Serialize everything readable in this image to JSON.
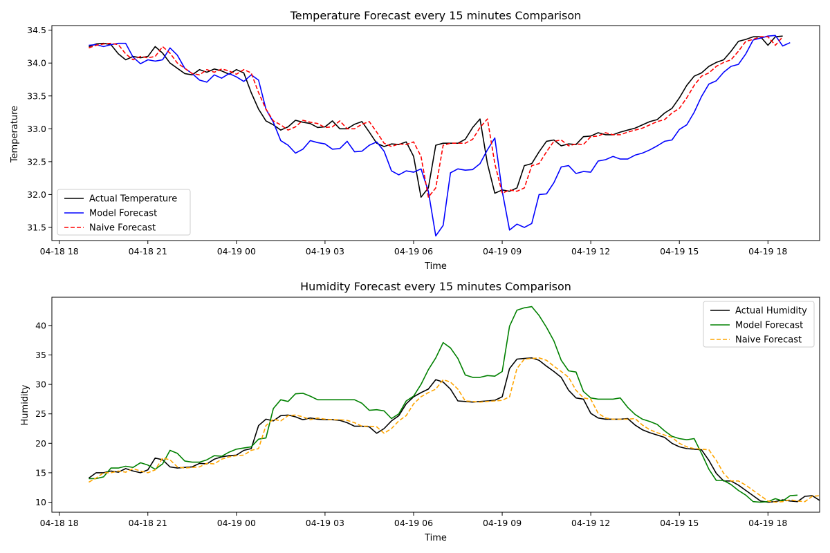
{
  "x_ticks": [
    "04-18 18",
    "04-18 21",
    "04-19 00",
    "04-19 03",
    "04-19 06",
    "04-19 09",
    "04-19 12",
    "04-19 15",
    "04-19 18"
  ],
  "colors": {
    "actual": "#000000",
    "temp_model": "#0000ff",
    "temp_naive": "#ff0000",
    "hum_model": "#008000",
    "hum_naive": "#ffa500"
  },
  "chart_data": [
    {
      "type": "line",
      "title": "Temperature Forecast every 15 minutes Comparison",
      "xlabel": "Time",
      "ylabel": "Temperature",
      "x_start": "2024-04-18 19:00",
      "x_step_minutes": 15,
      "xlim": [
        "2024-04-18 17:45",
        "2024-04-19 19:45"
      ],
      "ylim": [
        31.3,
        34.57
      ],
      "yticks": [
        "31.5",
        "32.0",
        "32.5",
        "33.0",
        "33.5",
        "34.0",
        "34.5"
      ],
      "legend_position": "bottom-left",
      "grid": false,
      "series": [
        {
          "name": "Actual Temperature",
          "style": "solid",
          "values": [
            34.25,
            34.29,
            34.3,
            34.28,
            34.14,
            34.05,
            34.1,
            34.08,
            34.1,
            34.25,
            34.15,
            34.0,
            33.92,
            33.84,
            33.82,
            33.9,
            33.86,
            33.91,
            33.88,
            33.83,
            33.9,
            33.85,
            33.55,
            33.3,
            33.12,
            33.06,
            32.98,
            33.03,
            33.13,
            33.1,
            33.08,
            33.02,
            33.03,
            33.12,
            33.0,
            33.0,
            33.07,
            33.11,
            32.95,
            32.78,
            32.73,
            32.77,
            32.76,
            32.8,
            32.58,
            31.96,
            32.1,
            32.75,
            32.78,
            32.78,
            32.78,
            32.84,
            33.02,
            33.15,
            32.47,
            32.02,
            32.07,
            32.05,
            32.1,
            32.44,
            32.47,
            32.65,
            32.81,
            32.83,
            32.74,
            32.77,
            32.76,
            32.88,
            32.89,
            32.94,
            32.91,
            32.91,
            32.95,
            32.98,
            33.01,
            33.06,
            33.11,
            33.14,
            33.24,
            33.31,
            33.47,
            33.66,
            33.8,
            33.85,
            33.95,
            34.01,
            34.05,
            34.18,
            34.33,
            34.36,
            34.4,
            34.4,
            34.27,
            34.4,
            34.41
          ]
        },
        {
          "name": "Model Forecast",
          "style": "solid",
          "values": [
            34.27,
            34.28,
            34.25,
            34.28,
            34.3,
            34.3,
            34.09,
            33.99,
            34.05,
            34.03,
            34.05,
            34.23,
            34.12,
            33.92,
            33.84,
            33.74,
            33.71,
            33.82,
            33.77,
            33.84,
            33.79,
            33.72,
            33.82,
            33.74,
            33.3,
            33.1,
            32.82,
            32.75,
            32.63,
            32.69,
            32.82,
            32.79,
            32.77,
            32.69,
            32.7,
            32.81,
            32.65,
            32.66,
            32.75,
            32.8,
            32.66,
            32.36,
            32.3,
            32.36,
            32.34,
            32.39,
            32.05,
            31.37,
            31.53,
            32.33,
            32.39,
            32.37,
            32.38,
            32.47,
            32.68,
            32.86,
            32.05,
            31.46,
            31.55,
            31.5,
            31.56,
            32.0,
            32.01,
            32.18,
            32.42,
            32.44,
            32.32,
            32.35,
            32.34,
            32.51,
            32.53,
            32.58,
            32.54,
            32.54,
            32.6,
            32.63,
            32.68,
            32.74,
            32.81,
            32.83,
            32.99,
            33.06,
            33.25,
            33.49,
            33.68,
            33.73,
            33.86,
            33.95,
            33.98,
            34.14,
            34.35,
            34.38,
            34.41,
            34.42,
            34.26,
            34.31
          ]
        },
        {
          "name": "Naive Forecast",
          "style": "dashed",
          "values": [
            34.23,
            34.27,
            34.29,
            34.3,
            34.28,
            34.14,
            34.05,
            34.1,
            34.08,
            34.1,
            34.25,
            34.15,
            34.0,
            33.92,
            33.84,
            33.82,
            33.9,
            33.86,
            33.91,
            33.88,
            33.83,
            33.9,
            33.85,
            33.55,
            33.3,
            33.12,
            33.06,
            32.98,
            33.03,
            33.13,
            33.1,
            33.08,
            33.02,
            33.03,
            33.12,
            33.0,
            33.0,
            33.07,
            33.11,
            32.95,
            32.78,
            32.73,
            32.77,
            32.76,
            32.8,
            32.58,
            31.96,
            32.1,
            32.75,
            32.78,
            32.78,
            32.78,
            32.84,
            33.02,
            33.15,
            32.47,
            32.02,
            32.07,
            32.05,
            32.1,
            32.44,
            32.47,
            32.65,
            32.81,
            32.83,
            32.74,
            32.77,
            32.76,
            32.88,
            32.89,
            32.94,
            32.91,
            32.91,
            32.95,
            32.98,
            33.01,
            33.06,
            33.11,
            33.14,
            33.24,
            33.31,
            33.47,
            33.66,
            33.8,
            33.85,
            33.95,
            34.01,
            34.05,
            34.18,
            34.33,
            34.36,
            34.4,
            34.4,
            34.27,
            34.4
          ]
        }
      ]
    },
    {
      "type": "line",
      "title": "Humidity Forecast every 15 minutes Comparison",
      "xlabel": "Time",
      "ylabel": "Humidity",
      "x_start": "2024-04-18 19:00",
      "x_step_minutes": 15,
      "xlim": [
        "2024-04-18 17:45",
        "2024-04-19 19:45"
      ],
      "ylim": [
        8.3,
        44.8
      ],
      "yticks": [
        "10",
        "15",
        "20",
        "25",
        "30",
        "35",
        "40"
      ],
      "legend_position": "top-right",
      "grid": false,
      "series": [
        {
          "name": "Actual Humidity",
          "style": "solid",
          "values": [
            14.1,
            15.0,
            15.0,
            15.3,
            15.1,
            15.7,
            15.3,
            15.0,
            15.5,
            17.5,
            17.2,
            16.0,
            15.8,
            15.9,
            16.0,
            16.6,
            16.5,
            17.3,
            17.7,
            17.9,
            18.0,
            18.8,
            19.1,
            23.0,
            24.1,
            23.8,
            24.7,
            24.8,
            24.5,
            24.0,
            24.3,
            24.1,
            24.0,
            24.0,
            23.9,
            23.5,
            22.9,
            22.9,
            22.8,
            21.7,
            22.5,
            23.8,
            24.7,
            26.7,
            27.9,
            28.6,
            29.2,
            30.8,
            30.4,
            29.2,
            27.2,
            27.1,
            27.0,
            27.1,
            27.2,
            27.3,
            27.9,
            32.7,
            34.3,
            34.4,
            34.5,
            34.1,
            33.1,
            32.2,
            31.2,
            29.0,
            27.7,
            27.5,
            25.1,
            24.3,
            24.1,
            24.1,
            24.1,
            24.2,
            23.1,
            22.3,
            21.8,
            21.4,
            21.0,
            20.0,
            19.4,
            19.1,
            19.0,
            18.9,
            17.1,
            14.9,
            13.6,
            13.6,
            12.9,
            12.0,
            11.1,
            10.2,
            10.0,
            10.1,
            10.4,
            10.2,
            10.1,
            11.0,
            11.1,
            10.3,
            10.4
          ]
        },
        {
          "name": "Model Forecast",
          "style": "solid",
          "values": [
            14.0,
            14.0,
            14.3,
            15.8,
            15.8,
            16.1,
            15.9,
            16.7,
            16.3,
            15.6,
            16.5,
            18.8,
            18.3,
            17.0,
            16.8,
            16.8,
            17.2,
            17.9,
            17.8,
            18.5,
            19.0,
            19.2,
            19.4,
            20.7,
            20.9,
            25.9,
            27.4,
            27.1,
            28.4,
            28.5,
            28.0,
            27.4,
            27.4,
            27.4,
            27.4,
            27.4,
            27.4,
            26.8,
            25.6,
            25.7,
            25.5,
            24.2,
            25.0,
            27.2,
            28.0,
            30.0,
            32.5,
            34.5,
            37.1,
            36.2,
            34.4,
            31.6,
            31.2,
            31.2,
            31.5,
            31.4,
            32.2,
            39.9,
            42.6,
            43.0,
            43.2,
            41.7,
            39.7,
            37.4,
            34.1,
            32.3,
            32.1,
            28.8,
            27.7,
            27.5,
            27.5,
            27.5,
            27.7,
            26.1,
            24.9,
            24.1,
            23.7,
            23.2,
            22.1,
            21.2,
            20.8,
            20.6,
            20.8,
            18.3,
            15.6,
            13.7,
            13.7,
            13.0,
            12.0,
            11.2,
            10.1,
            10.0,
            10.1,
            10.6,
            10.2,
            11.1,
            11.2
          ]
        },
        {
          "name": "Naive Forecast",
          "style": "dashed",
          "values": [
            13.4,
            14.1,
            15.0,
            15.0,
            15.3,
            15.1,
            15.7,
            15.3,
            15.0,
            15.5,
            17.5,
            17.2,
            16.0,
            15.8,
            15.9,
            16.0,
            16.6,
            16.5,
            17.3,
            17.7,
            17.9,
            18.0,
            18.8,
            19.1,
            23.0,
            24.1,
            23.8,
            24.7,
            24.8,
            24.5,
            24.0,
            24.3,
            24.1,
            24.0,
            24.0,
            23.9,
            23.5,
            22.9,
            22.9,
            22.8,
            21.7,
            22.5,
            23.8,
            24.7,
            26.7,
            27.9,
            28.6,
            29.2,
            30.8,
            30.4,
            29.2,
            27.2,
            27.1,
            27.0,
            27.1,
            27.2,
            27.3,
            27.9,
            32.7,
            34.3,
            34.4,
            34.5,
            34.1,
            33.1,
            32.2,
            31.2,
            29.0,
            27.7,
            27.5,
            25.1,
            24.3,
            24.1,
            24.1,
            24.1,
            24.2,
            23.1,
            22.3,
            21.8,
            21.4,
            21.0,
            20.0,
            19.4,
            19.1,
            19.0,
            18.9,
            17.1,
            14.9,
            13.6,
            13.6,
            12.9,
            12.0,
            11.1,
            10.2,
            10.0,
            10.1,
            10.4,
            10.2,
            10.1,
            11.0,
            11.1,
            10.3
          ]
        }
      ]
    }
  ]
}
